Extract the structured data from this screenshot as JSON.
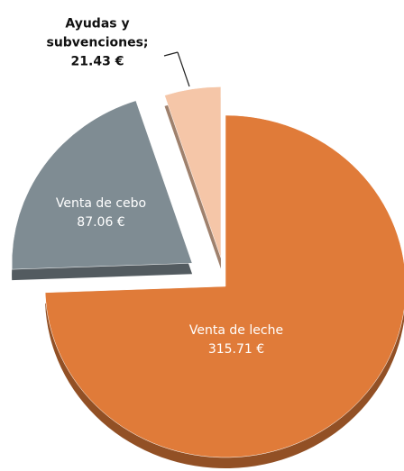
{
  "chart_data": {
    "type": "pie",
    "categories": [
      "Venta de leche",
      "Venta de cebo",
      "Ayudas y subvenciones;"
    ],
    "values": [
      315.71,
      87.06,
      21.43
    ],
    "value_labels": [
      "315.71 €",
      "87.06 €",
      "21.43 €"
    ],
    "colors": [
      "#e07b39",
      "#7f8c93",
      "#f5c6a8"
    ]
  }
}
